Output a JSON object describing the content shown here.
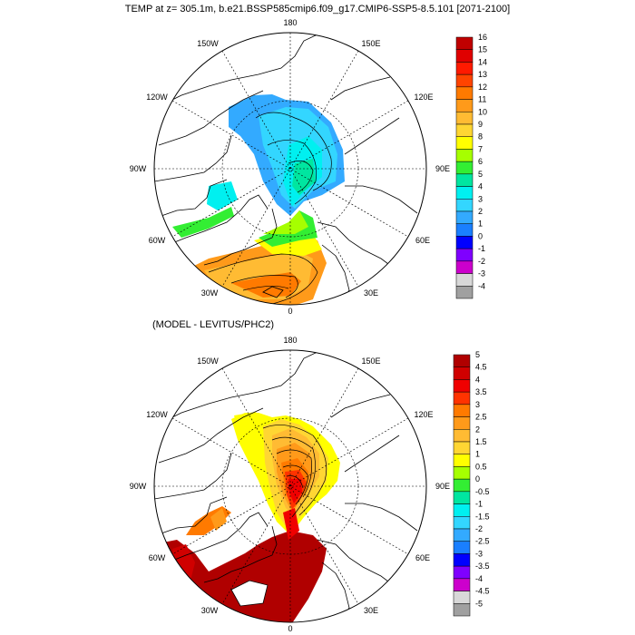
{
  "title": "TEMP at z= 305.1m, b.e21.BSSP585cmip6.f09_g17.CMIP6-SSP5-8.5.101 [2071-2100]",
  "diff_title": "(MODEL - LEVITUS/PHC2)",
  "longitude_labels": {
    "top": "180",
    "tl": "150W",
    "tr": "150E",
    "l2": "120W",
    "r2": "120E",
    "l3": "90W",
    "r3": "90E",
    "l4": "60W",
    "r4": "60E",
    "bl": "30W",
    "br": "30E",
    "bottom": "0"
  },
  "colorbar_top": {
    "labels": [
      "16",
      "15",
      "14",
      "13",
      "12",
      "11",
      "10",
      "9",
      "8",
      "7",
      "6",
      "5",
      "4",
      "3",
      "2",
      "1",
      "0",
      "-1",
      "-2",
      "-3",
      "-4"
    ],
    "colors": [
      "#c00000",
      "#e00000",
      "#ff1a00",
      "#ff4400",
      "#ff7a00",
      "#ff9a1a",
      "#ffbb33",
      "#ffd633",
      "#ffff00",
      "#a6ff00",
      "#33ee33",
      "#00e6a0",
      "#00f0f0",
      "#33d6ff",
      "#33aaff",
      "#1a7fff",
      "#0000ff",
      "#7f00ff",
      "#cc00cc",
      "#d8d8d8",
      "#a0a0a0"
    ]
  },
  "colorbar_bottom": {
    "labels": [
      "5",
      "4.5",
      "4",
      "3.5",
      "3",
      "2.5",
      "2",
      "1.5",
      "1",
      "0.5",
      "0",
      "-0.5",
      "-1",
      "-1.5",
      "-2",
      "-2.5",
      "-3",
      "-3.5",
      "-4",
      "-4.5",
      "-5"
    ],
    "colors": [
      "#b00000",
      "#d00000",
      "#f00000",
      "#ff3300",
      "#ff7a00",
      "#ff9a1a",
      "#ffbb33",
      "#ffd633",
      "#ffff00",
      "#a6ff00",
      "#33ee33",
      "#00e6a0",
      "#00f0f0",
      "#33d6ff",
      "#33aaff",
      "#1a7fff",
      "#0000ff",
      "#7f00ff",
      "#cc00cc",
      "#d8d8d8",
      "#a0a0a0"
    ]
  }
}
